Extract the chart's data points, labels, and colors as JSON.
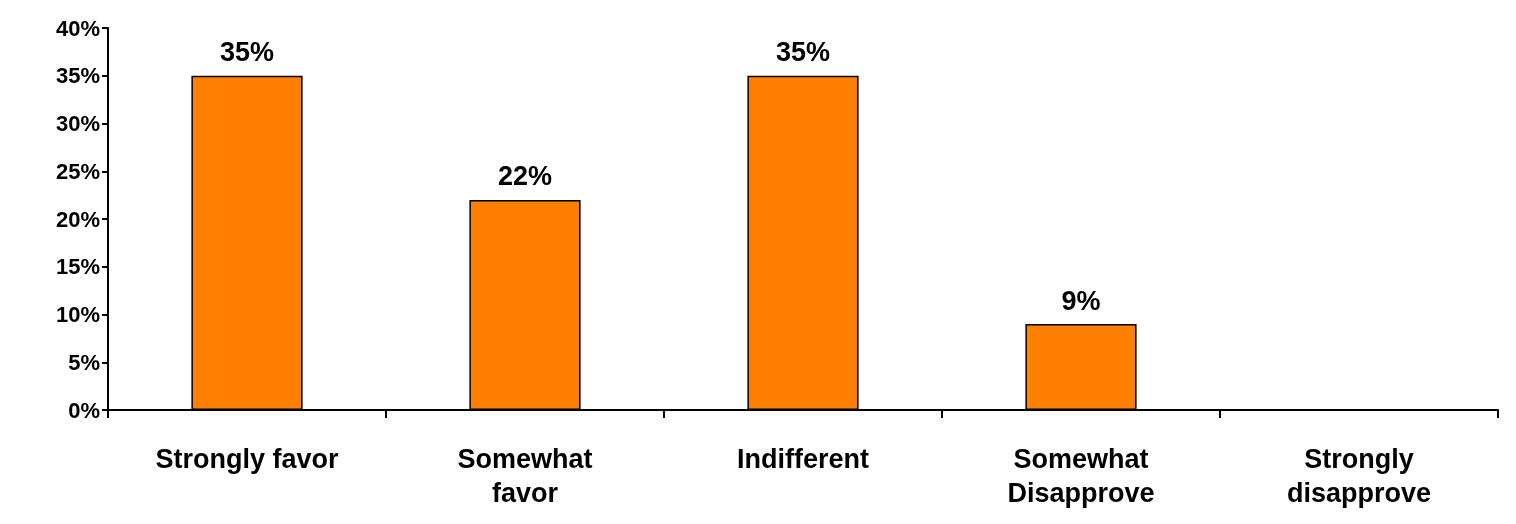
{
  "chart_data": {
    "type": "bar",
    "categories": [
      "Strongly favor",
      "Somewhat\nfavor",
      "Indifferent",
      "Somewhat\nDisapprove",
      "Strongly\ndisapprove"
    ],
    "values": [
      35,
      22,
      35,
      9,
      null
    ],
    "value_labels": [
      "35%",
      "22%",
      "35%",
      "9%",
      null
    ],
    "color": "#ff7f00",
    "ylim": [
      0,
      40
    ],
    "yticks": [
      {
        "value": 0,
        "label": "0%"
      },
      {
        "value": 5,
        "label": "5%"
      },
      {
        "value": 10,
        "label": "10%"
      },
      {
        "value": 15,
        "label": "15%"
      },
      {
        "value": 20,
        "label": "20%"
      },
      {
        "value": 25,
        "label": "25%"
      },
      {
        "value": 30,
        "label": "30%"
      },
      {
        "value": 35,
        "label": "35%"
      },
      {
        "value": 40,
        "label": "40%"
      }
    ],
    "grid": false
  }
}
